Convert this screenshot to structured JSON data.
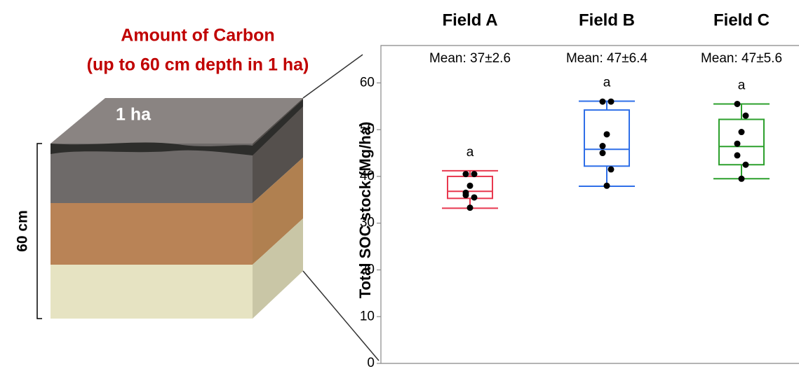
{
  "diagram": {
    "title": [
      "Amount of Carbon",
      "(up to 60 cm depth in 1 ha)"
    ],
    "area_label": "1 ha",
    "depth_label": "60 cm"
  },
  "chart_data": {
    "type": "box",
    "y_label": "Total SOC stock (Mg/ha)",
    "ylim": [
      0,
      68
    ],
    "yticks": [
      0,
      10,
      20,
      30,
      40,
      50,
      60
    ],
    "series": [
      {
        "name": "Field A",
        "color": "#e8384f",
        "mean_label": "Mean: 37±2.6",
        "letter": "a",
        "whisker_low": 33.2,
        "q1": 35.3,
        "median": 36.8,
        "q3": 40,
        "whisker_high": 41.2,
        "points": [
          40.5,
          40.5,
          38,
          36.5,
          36,
          35.5,
          33.3
        ]
      },
      {
        "name": "Field B",
        "color": "#2f6fe8",
        "mean_label": "Mean: 47±6.4",
        "letter": "a",
        "whisker_low": 37.9,
        "q1": 42.2,
        "median": 45.8,
        "q3": 54.2,
        "whisker_high": 56.1,
        "points": [
          56,
          56,
          49,
          46.5,
          45,
          41.5,
          38
        ]
      },
      {
        "name": "Field C",
        "color": "#2ca02c",
        "mean_label": "Mean: 47±5.6",
        "letter": "a",
        "whisker_low": 39.5,
        "q1": 42.5,
        "median": 46.4,
        "q3": 52.2,
        "whisker_high": 55.5,
        "points": [
          55.5,
          53,
          49.5,
          47,
          44.5,
          42.5,
          39.5
        ]
      }
    ]
  }
}
